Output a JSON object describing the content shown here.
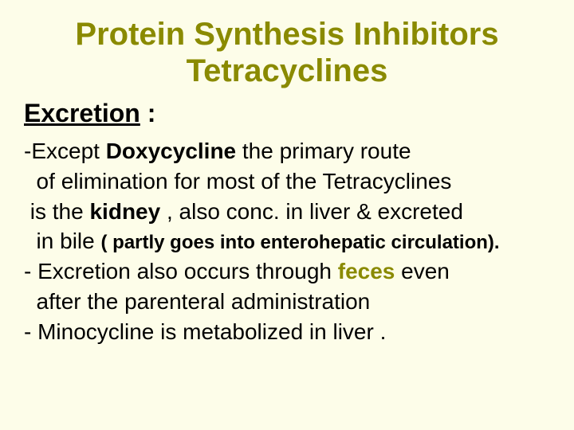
{
  "title_line1": "Protein Synthesis Inhibitors",
  "title_line2": "Tetracyclines",
  "subheading": {
    "underlined": "Excretion",
    "colon": " :"
  },
  "body": {
    "line1a": "-Except ",
    "line1b": "Doxycycline",
    "line1c": "  the primary route",
    "line2": "  of elimination for most of the Tetracyclines",
    "line3a": " is the ",
    "line3b": "kidney",
    "line3c": " , also conc. in liver & excreted",
    "line4a": "  in bile ",
    "line4b": "( partly goes into enterohepatic circulation).",
    "line5a": "- Excretion also occurs through ",
    "line5b": "feces",
    "line5c": " even",
    "line6": "  after the parenteral administration",
    "line7": "- Minocycline is metabolized in liver ."
  },
  "colors": {
    "background": "#fdfde9",
    "title": "#8a8a00",
    "text": "#000000",
    "accent": "#8a8a00"
  },
  "typography": {
    "title_fontsize": 40,
    "subheading_fontsize": 32,
    "body_fontsize": 28,
    "paren_fontsize": 24,
    "font_family": "Arial"
  }
}
